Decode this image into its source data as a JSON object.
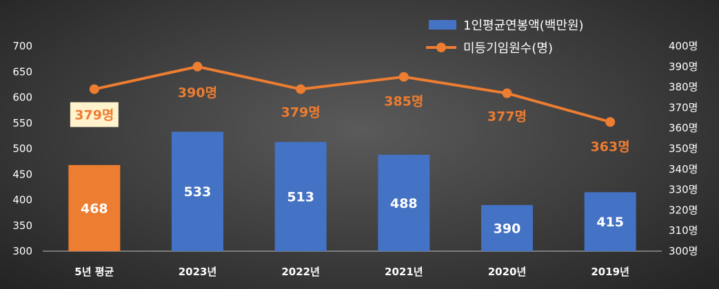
{
  "chart_data": {
    "type": "bar",
    "categories": [
      "5년 평균",
      "2023년",
      "2022년",
      "2021년",
      "2020년",
      "2019년"
    ],
    "series": [
      {
        "name": "1인평균연봉액(백만원)",
        "type": "bar",
        "axis": "left",
        "values": [
          468,
          533,
          513,
          488,
          390,
          415
        ],
        "labels": [
          "468",
          "533",
          "513",
          "488",
          "390",
          "415"
        ],
        "colors": [
          "#ed7d31",
          "#4472c4",
          "#4472c4",
          "#4472c4",
          "#4472c4",
          "#4472c4"
        ]
      },
      {
        "name": "미등기임원수(명)",
        "type": "line",
        "axis": "right",
        "values": [
          379,
          390,
          379,
          385,
          377,
          363
        ],
        "labels": [
          "379명",
          "390명",
          "379명",
          "385명",
          "377명",
          "363명"
        ],
        "color": "#ed7d31"
      }
    ],
    "left_axis": {
      "ylim": [
        300,
        700
      ],
      "ticks": [
        "300",
        "350",
        "400",
        "450",
        "500",
        "550",
        "600",
        "650",
        "700"
      ]
    },
    "right_axis": {
      "ylim": [
        300,
        400
      ],
      "ticks": [
        "300명",
        "310명",
        "320명",
        "330명",
        "340명",
        "350명",
        "360명",
        "370명",
        "380명",
        "390명",
        "400명"
      ]
    },
    "legend_position": "top-right",
    "grid": false
  }
}
